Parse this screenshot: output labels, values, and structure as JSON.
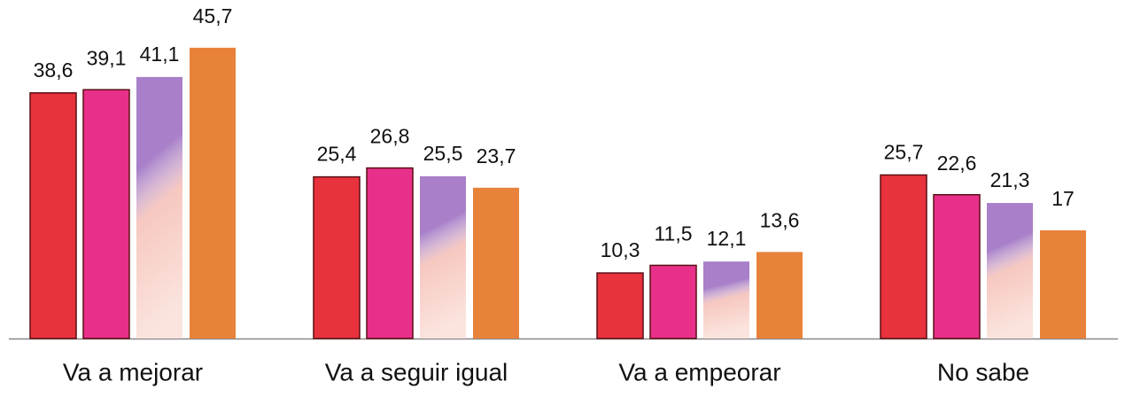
{
  "chart_data": {
    "type": "bar",
    "categories": [
      "Va a mejorar",
      "Va a seguir igual",
      "Va a empeorar",
      "No sabe"
    ],
    "series": [
      {
        "color": "#e8323c",
        "values": [
          38.6,
          25.4,
          10.3,
          25.7
        ],
        "value_labels": [
          "38,6",
          "25,4",
          "10,3",
          "25,7"
        ]
      },
      {
        "color": "#e8308a",
        "values": [
          39.1,
          26.8,
          11.5,
          22.6
        ],
        "value_labels": [
          "39,1",
          "26,8",
          "11,5",
          "22,6"
        ]
      },
      {
        "color": "#a87fc8",
        "values": [
          41.1,
          25.5,
          12.1,
          21.3
        ],
        "value_labels": [
          "41,1",
          "25,5",
          "12,1",
          "21,3"
        ]
      },
      {
        "color": "#e8823a",
        "values": [
          45.7,
          23.7,
          13.6,
          17
        ],
        "value_labels": [
          "45,7",
          "23,7",
          "13,6",
          "17"
        ]
      }
    ],
    "ylim": [
      0,
      53.2
    ]
  }
}
